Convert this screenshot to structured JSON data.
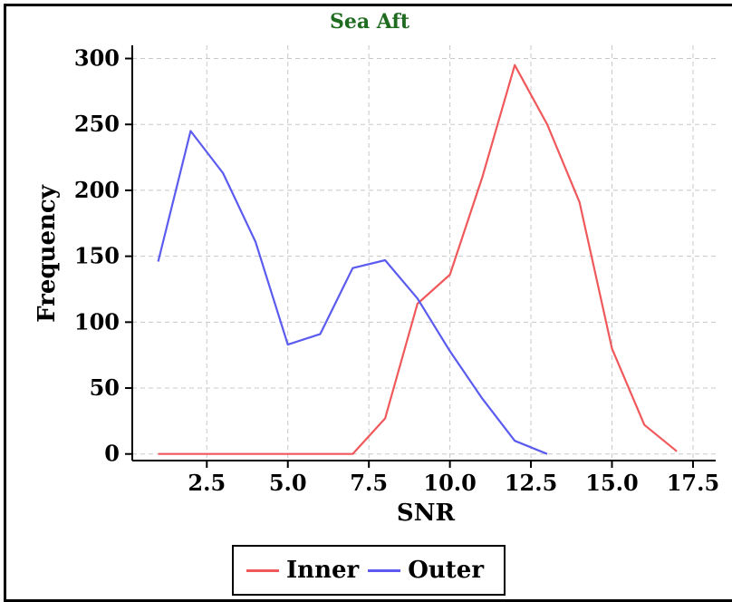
{
  "chart_data": {
    "type": "line",
    "title": "Sea Aft",
    "xlabel": "SNR",
    "ylabel": "Frequency",
    "xlim": [
      0.2,
      18.2
    ],
    "ylim": [
      -5,
      310
    ],
    "x_ticks": [
      "2.5",
      "5.0",
      "7.5",
      "10.0",
      "12.5",
      "15.0",
      "17.5"
    ],
    "y_ticks": [
      "0",
      "50",
      "100",
      "150",
      "200",
      "250",
      "300"
    ],
    "grid": true,
    "legend_position": "bottom",
    "series": [
      {
        "name": "Inner",
        "color": "#f0595b",
        "x": [
          1,
          2,
          3,
          4,
          5,
          6,
          7,
          8,
          9,
          10,
          11,
          12,
          13,
          14,
          15,
          16,
          17
        ],
        "y": [
          0,
          0,
          0,
          0,
          0,
          0,
          0,
          27,
          114,
          136,
          210,
          295,
          250,
          191,
          80,
          22,
          2
        ]
      },
      {
        "name": "Outer",
        "color": "#5b5bef",
        "x": [
          1,
          2,
          3,
          4,
          5,
          6,
          7,
          8,
          9,
          10,
          11,
          12,
          13
        ],
        "y": [
          146,
          245,
          213,
          161,
          83,
          91,
          141,
          147,
          118,
          78,
          42,
          10,
          0
        ]
      }
    ]
  }
}
